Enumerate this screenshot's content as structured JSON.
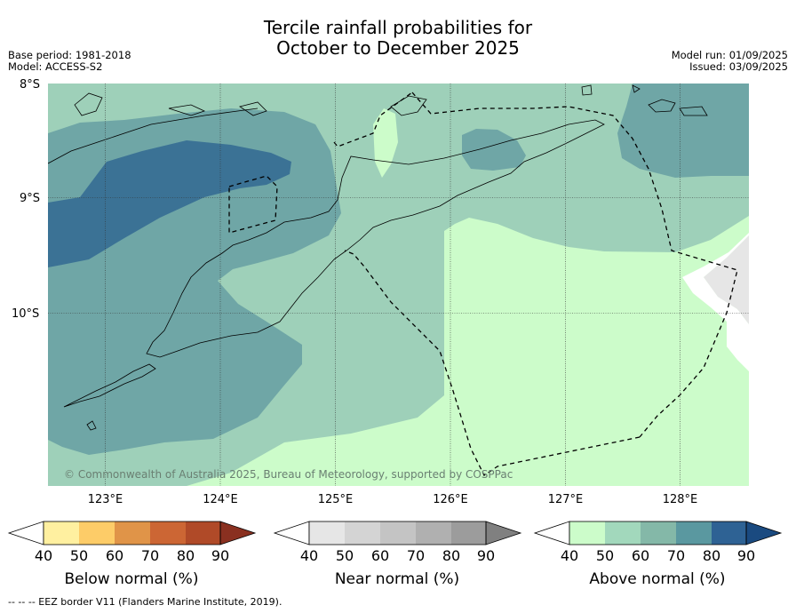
{
  "title_line1": "Tercile rainfall probabilities for",
  "title_line2": "October to December 2025",
  "base_period": "Base period: 1981-2018",
  "model": "Model: ACCESS-S2",
  "model_run": "Model run: 01/09/2025",
  "issued": "Issued: 03/09/2025",
  "lat_labels": [
    "8°S",
    "9°S",
    "10°S"
  ],
  "lon_labels": [
    "123°E",
    "124°E",
    "125°E",
    "126°E",
    "127°E",
    "128°E"
  ],
  "copyright": "© Commonwealth of Australia 2025, Bureau of Meteorology, supported by COSPPac",
  "colorbars": [
    {
      "label": "Below normal (%)",
      "ticks": [
        "40",
        "50",
        "60",
        "70",
        "80",
        "90"
      ],
      "colors": [
        "#ffffff",
        "#fff0a0",
        "#fdcc68",
        "#e09448",
        "#cc6634",
        "#b04a28",
        "#8a3020"
      ]
    },
    {
      "label": "Near normal (%)",
      "ticks": [
        "40",
        "50",
        "60",
        "70",
        "80",
        "90"
      ],
      "colors": [
        "#ffffff",
        "#e6e6e6",
        "#d4d4d4",
        "#c4c4c4",
        "#b0b0b0",
        "#9c9c9c",
        "#808080"
      ]
    },
    {
      "label": "Above normal (%)",
      "ticks": [
        "40",
        "50",
        "60",
        "70",
        "80",
        "90"
      ],
      "colors": [
        "#ffffff",
        "#ccfcca",
        "#a2d8bc",
        "#84b8a8",
        "#5a98a0",
        "#2e6294",
        "#1a4a80"
      ]
    }
  ],
  "footnote": "--  --  -- EEZ border V11 (Flanders Marine Institute, 2019)."
}
